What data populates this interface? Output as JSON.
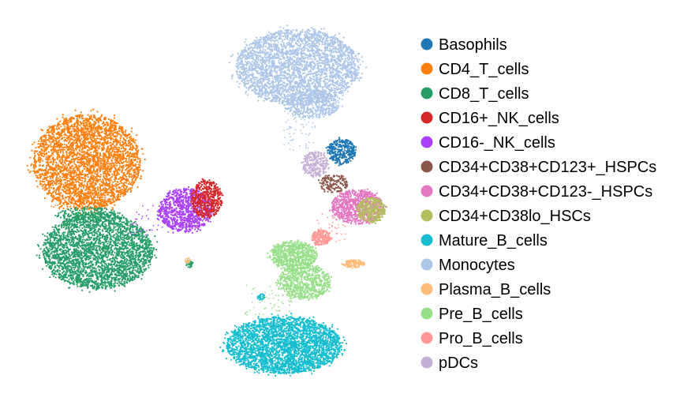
{
  "chart_data": {
    "type": "scatter",
    "title": "",
    "xlabel": "",
    "ylabel": "",
    "axes_visible": false,
    "grid": false,
    "legend_placement": "right",
    "series": [
      {
        "name": "Basophils",
        "color": "#1f77b4"
      },
      {
        "name": "CD4_T_cells",
        "color": "#ff7f0e"
      },
      {
        "name": "CD8_T_cells",
        "color": "#279e68"
      },
      {
        "name": "CD16+_NK_cells",
        "color": "#d62728"
      },
      {
        "name": "CD16-_NK_cells",
        "color": "#aa40fc"
      },
      {
        "name": "CD34+CD38+CD123+_HSPCs",
        "color": "#8c564b"
      },
      {
        "name": "CD34+CD38+CD123-_HSPCs",
        "color": "#e377c2"
      },
      {
        "name": "CD34+CD38lo_HSCs",
        "color": "#b5bd61"
      },
      {
        "name": "Mature_B_cells",
        "color": "#17becf"
      },
      {
        "name": "Monocytes",
        "color": "#aec7e8"
      },
      {
        "name": "Plasma_B_cells",
        "color": "#ffbb78"
      },
      {
        "name": "Pre_B_cells",
        "color": "#98df8a"
      },
      {
        "name": "Pro_B_cells",
        "color": "#ff9896"
      },
      {
        "name": "pDCs",
        "color": "#c5b0d5"
      }
    ]
  }
}
